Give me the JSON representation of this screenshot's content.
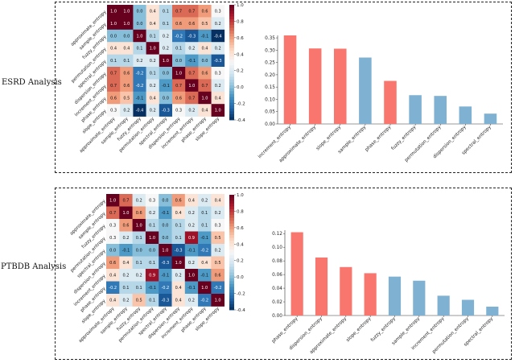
{
  "panels": {
    "top_label": "ESRD Analysis",
    "bottom_label": "PTBDB Analysis"
  },
  "chart_data": [
    {
      "type": "heatmap",
      "panel": "ESRD Analysis",
      "labels": [
        "approximate_entropy",
        "sample_entropy",
        "fuzzy_entropy",
        "permutation_entropy",
        "spectral_entropy",
        "dispersion_entropy",
        "increment_entropy",
        "phase_entropy",
        "slope_entropy"
      ],
      "values": [
        [
          1.0,
          1.0,
          0.0,
          0.4,
          0.1,
          0.7,
          0.7,
          0.6,
          0.3
        ],
        [
          1.0,
          1.0,
          0.0,
          0.4,
          0.1,
          0.6,
          0.6,
          0.5,
          0.2
        ],
        [
          0.0,
          0.0,
          1.0,
          0.1,
          0.2,
          -0.2,
          -0.3,
          -0.1,
          -0.4
        ],
        [
          0.4,
          0.4,
          0.1,
          1.0,
          0.2,
          0.1,
          0.2,
          0.4,
          0.2
        ],
        [
          0.1,
          0.1,
          0.2,
          0.2,
          1.0,
          0.0,
          -0.1,
          0.0,
          -0.3
        ],
        [
          0.7,
          0.6,
          -0.2,
          0.1,
          0.0,
          1.0,
          0.7,
          0.6,
          0.3
        ],
        [
          0.7,
          0.6,
          -0.2,
          0.2,
          -0.1,
          0.7,
          1.0,
          0.7,
          0.2
        ],
        [
          0.6,
          0.5,
          -0.1,
          0.4,
          0.0,
          0.6,
          0.7,
          1.0,
          0.4
        ],
        [
          0.3,
          0.2,
          -0.4,
          0.2,
          -0.3,
          0.3,
          0.2,
          0.4,
          1.0
        ]
      ],
      "vmin": -0.4,
      "vmax": 1.0,
      "colorbar_ticks": [
        1.0,
        0.8,
        0.6,
        0.4,
        0.2,
        0.0,
        -0.2,
        -0.4
      ],
      "colorbar_tick_labels": [
        "1.0",
        "0.8",
        "0.6",
        "0.4",
        "0.2",
        "0.0",
        "-0.2",
        "-0.4"
      ],
      "colormap": [
        "#053061",
        "#2166ac",
        "#4393c3",
        "#92c5de",
        "#d1e5f0",
        "#f7f7f7",
        "#fddbc7",
        "#f4a582",
        "#d6604d",
        "#b2182b",
        "#67001f"
      ]
    },
    {
      "type": "bar",
      "panel": "ESRD Analysis",
      "categories": [
        "increment_entropy",
        "approximate_entropy",
        "slope_entropy",
        "sample_entropy",
        "phase_entropy",
        "fuzzy_entropy",
        "permutation_entropy",
        "dispersion_entropy",
        "spectral_entropy"
      ],
      "values": [
        0.36,
        0.307,
        0.306,
        0.27,
        0.175,
        0.117,
        0.114,
        0.071,
        0.042
      ],
      "ylim": [
        0,
        0.36
      ],
      "yticks": [
        0.0,
        0.05,
        0.1,
        0.15,
        0.2,
        0.25,
        0.3,
        0.35
      ],
      "ytick_labels": [
        "0.00",
        "0.05",
        "0.10",
        "0.15",
        "0.20",
        "0.25",
        "0.30",
        "0.35"
      ],
      "bar_colors": [
        "#f8766d",
        "#f8766d",
        "#f8766d",
        "#7fb1d3",
        "#f8766d",
        "#7fb1d3",
        "#7fb1d3",
        "#7fb1d3",
        "#7fb1d3"
      ]
    },
    {
      "type": "heatmap",
      "panel": "PTBDB Analysis",
      "labels": [
        "approximate_entropy",
        "sample_entropy",
        "fuzzy_entropy",
        "permutation_entropy",
        "spectral_entropy",
        "dispersion_entropy",
        "increment_entropy",
        "phase_entropy",
        "slope_entropy"
      ],
      "values": [
        [
          1.0,
          0.7,
          0.2,
          0.3,
          0.0,
          0.6,
          0.4,
          0.2,
          0.4
        ],
        [
          0.7,
          1.0,
          0.6,
          0.2,
          -0.1,
          0.4,
          0.2,
          0.1,
          0.2
        ],
        [
          0.3,
          0.6,
          1.0,
          0.1,
          0.0,
          0.1,
          0.2,
          0.1,
          0.3
        ],
        [
          0.3,
          0.2,
          0.1,
          1.0,
          0.0,
          0.1,
          0.9,
          -0.1,
          0.5
        ],
        [
          0.0,
          -0.1,
          0.0,
          0.0,
          1.0,
          -0.3,
          -0.1,
          -0.2,
          0.2
        ],
        [
          0.6,
          0.4,
          0.1,
          0.1,
          -0.3,
          1.0,
          0.2,
          0.4,
          0.5
        ],
        [
          0.4,
          0.2,
          0.2,
          0.9,
          -0.1,
          0.2,
          1.0,
          -0.1,
          0.6
        ],
        [
          -0.2,
          0.1,
          0.1,
          -0.1,
          -0.2,
          0.4,
          -0.1,
          1.0,
          -0.2
        ],
        [
          0.4,
          0.2,
          0.5,
          0.1,
          -0.3,
          0.4,
          0.2,
          -0.2,
          1.0
        ]
      ],
      "vmin": -0.4,
      "vmax": 1.0,
      "colorbar_ticks": [
        1.0,
        0.8,
        0.6,
        0.4,
        0.2,
        0.0,
        -0.2,
        -0.4
      ],
      "colorbar_tick_labels": [
        "1.0",
        "0.8",
        "0.6",
        "0.4",
        "0.2",
        "0.0",
        "-0.2",
        "-0.4"
      ],
      "colormap": [
        "#053061",
        "#2166ac",
        "#4393c3",
        "#92c5de",
        "#d1e5f0",
        "#f7f7f7",
        "#fddbc7",
        "#f4a582",
        "#d6604d",
        "#b2182b",
        "#67001f"
      ]
    },
    {
      "type": "bar",
      "panel": "PTBDB Analysis",
      "categories": [
        "phase_entropy",
        "dispersion_entropy",
        "approximate_entropy",
        "slope_entropy",
        "fuzzy_entropy",
        "sample_entropy",
        "increment_entropy",
        "permutation_entropy",
        "spectral_entropy"
      ],
      "values": [
        0.122,
        0.085,
        0.071,
        0.062,
        0.057,
        0.051,
        0.029,
        0.023,
        0.013
      ],
      "ylim": [
        0,
        0.125
      ],
      "yticks": [
        0.0,
        0.02,
        0.04,
        0.06,
        0.08,
        0.1,
        0.12
      ],
      "ytick_labels": [
        "0.00",
        "0.02",
        "0.04",
        "0.06",
        "0.08",
        "0.10",
        "0.12"
      ],
      "bar_colors": [
        "#f8766d",
        "#f8766d",
        "#f8766d",
        "#f8766d",
        "#7fb1d3",
        "#7fb1d3",
        "#7fb1d3",
        "#7fb1d3",
        "#7fb1d3"
      ]
    }
  ]
}
